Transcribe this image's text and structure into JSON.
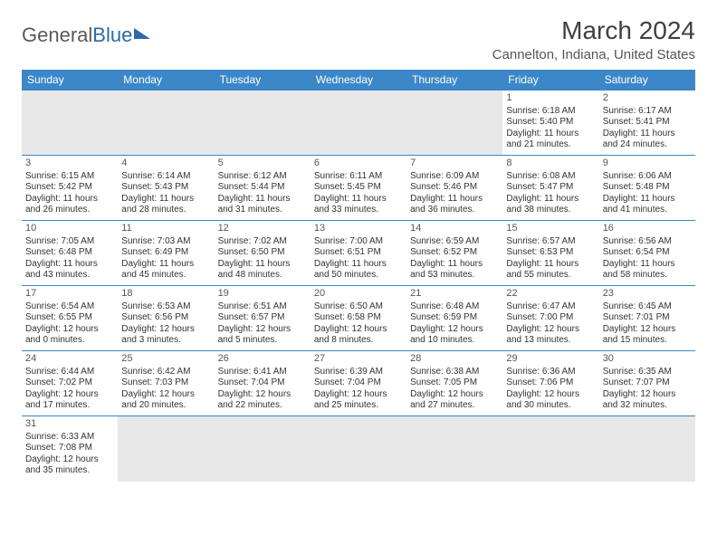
{
  "logo": {
    "general": "General",
    "blue": "Blue"
  },
  "title": "March 2024",
  "location": "Cannelton, Indiana, United States",
  "weekdays": [
    "Sunday",
    "Monday",
    "Tuesday",
    "Wednesday",
    "Thursday",
    "Friday",
    "Saturday"
  ],
  "colors": {
    "header_bg": "#3b87c8",
    "header_text": "#ffffff",
    "border": "#3b87c8",
    "text": "#333333",
    "empty_bg": "#e8e8e8"
  },
  "weeks": [
    [
      null,
      null,
      null,
      null,
      null,
      {
        "n": "1",
        "sr": "Sunrise: 6:18 AM",
        "ss": "Sunset: 5:40 PM",
        "d1": "Daylight: 11 hours",
        "d2": "and 21 minutes."
      },
      {
        "n": "2",
        "sr": "Sunrise: 6:17 AM",
        "ss": "Sunset: 5:41 PM",
        "d1": "Daylight: 11 hours",
        "d2": "and 24 minutes."
      }
    ],
    [
      {
        "n": "3",
        "sr": "Sunrise: 6:15 AM",
        "ss": "Sunset: 5:42 PM",
        "d1": "Daylight: 11 hours",
        "d2": "and 26 minutes."
      },
      {
        "n": "4",
        "sr": "Sunrise: 6:14 AM",
        "ss": "Sunset: 5:43 PM",
        "d1": "Daylight: 11 hours",
        "d2": "and 28 minutes."
      },
      {
        "n": "5",
        "sr": "Sunrise: 6:12 AM",
        "ss": "Sunset: 5:44 PM",
        "d1": "Daylight: 11 hours",
        "d2": "and 31 minutes."
      },
      {
        "n": "6",
        "sr": "Sunrise: 6:11 AM",
        "ss": "Sunset: 5:45 PM",
        "d1": "Daylight: 11 hours",
        "d2": "and 33 minutes."
      },
      {
        "n": "7",
        "sr": "Sunrise: 6:09 AM",
        "ss": "Sunset: 5:46 PM",
        "d1": "Daylight: 11 hours",
        "d2": "and 36 minutes."
      },
      {
        "n": "8",
        "sr": "Sunrise: 6:08 AM",
        "ss": "Sunset: 5:47 PM",
        "d1": "Daylight: 11 hours",
        "d2": "and 38 minutes."
      },
      {
        "n": "9",
        "sr": "Sunrise: 6:06 AM",
        "ss": "Sunset: 5:48 PM",
        "d1": "Daylight: 11 hours",
        "d2": "and 41 minutes."
      }
    ],
    [
      {
        "n": "10",
        "sr": "Sunrise: 7:05 AM",
        "ss": "Sunset: 6:48 PM",
        "d1": "Daylight: 11 hours",
        "d2": "and 43 minutes."
      },
      {
        "n": "11",
        "sr": "Sunrise: 7:03 AM",
        "ss": "Sunset: 6:49 PM",
        "d1": "Daylight: 11 hours",
        "d2": "and 45 minutes."
      },
      {
        "n": "12",
        "sr": "Sunrise: 7:02 AM",
        "ss": "Sunset: 6:50 PM",
        "d1": "Daylight: 11 hours",
        "d2": "and 48 minutes."
      },
      {
        "n": "13",
        "sr": "Sunrise: 7:00 AM",
        "ss": "Sunset: 6:51 PM",
        "d1": "Daylight: 11 hours",
        "d2": "and 50 minutes."
      },
      {
        "n": "14",
        "sr": "Sunrise: 6:59 AM",
        "ss": "Sunset: 6:52 PM",
        "d1": "Daylight: 11 hours",
        "d2": "and 53 minutes."
      },
      {
        "n": "15",
        "sr": "Sunrise: 6:57 AM",
        "ss": "Sunset: 6:53 PM",
        "d1": "Daylight: 11 hours",
        "d2": "and 55 minutes."
      },
      {
        "n": "16",
        "sr": "Sunrise: 6:56 AM",
        "ss": "Sunset: 6:54 PM",
        "d1": "Daylight: 11 hours",
        "d2": "and 58 minutes."
      }
    ],
    [
      {
        "n": "17",
        "sr": "Sunrise: 6:54 AM",
        "ss": "Sunset: 6:55 PM",
        "d1": "Daylight: 12 hours",
        "d2": "and 0 minutes."
      },
      {
        "n": "18",
        "sr": "Sunrise: 6:53 AM",
        "ss": "Sunset: 6:56 PM",
        "d1": "Daylight: 12 hours",
        "d2": "and 3 minutes."
      },
      {
        "n": "19",
        "sr": "Sunrise: 6:51 AM",
        "ss": "Sunset: 6:57 PM",
        "d1": "Daylight: 12 hours",
        "d2": "and 5 minutes."
      },
      {
        "n": "20",
        "sr": "Sunrise: 6:50 AM",
        "ss": "Sunset: 6:58 PM",
        "d1": "Daylight: 12 hours",
        "d2": "and 8 minutes."
      },
      {
        "n": "21",
        "sr": "Sunrise: 6:48 AM",
        "ss": "Sunset: 6:59 PM",
        "d1": "Daylight: 12 hours",
        "d2": "and 10 minutes."
      },
      {
        "n": "22",
        "sr": "Sunrise: 6:47 AM",
        "ss": "Sunset: 7:00 PM",
        "d1": "Daylight: 12 hours",
        "d2": "and 13 minutes."
      },
      {
        "n": "23",
        "sr": "Sunrise: 6:45 AM",
        "ss": "Sunset: 7:01 PM",
        "d1": "Daylight: 12 hours",
        "d2": "and 15 minutes."
      }
    ],
    [
      {
        "n": "24",
        "sr": "Sunrise: 6:44 AM",
        "ss": "Sunset: 7:02 PM",
        "d1": "Daylight: 12 hours",
        "d2": "and 17 minutes."
      },
      {
        "n": "25",
        "sr": "Sunrise: 6:42 AM",
        "ss": "Sunset: 7:03 PM",
        "d1": "Daylight: 12 hours",
        "d2": "and 20 minutes."
      },
      {
        "n": "26",
        "sr": "Sunrise: 6:41 AM",
        "ss": "Sunset: 7:04 PM",
        "d1": "Daylight: 12 hours",
        "d2": "and 22 minutes."
      },
      {
        "n": "27",
        "sr": "Sunrise: 6:39 AM",
        "ss": "Sunset: 7:04 PM",
        "d1": "Daylight: 12 hours",
        "d2": "and 25 minutes."
      },
      {
        "n": "28",
        "sr": "Sunrise: 6:38 AM",
        "ss": "Sunset: 7:05 PM",
        "d1": "Daylight: 12 hours",
        "d2": "and 27 minutes."
      },
      {
        "n": "29",
        "sr": "Sunrise: 6:36 AM",
        "ss": "Sunset: 7:06 PM",
        "d1": "Daylight: 12 hours",
        "d2": "and 30 minutes."
      },
      {
        "n": "30",
        "sr": "Sunrise: 6:35 AM",
        "ss": "Sunset: 7:07 PM",
        "d1": "Daylight: 12 hours",
        "d2": "and 32 minutes."
      }
    ],
    [
      {
        "n": "31",
        "sr": "Sunrise: 6:33 AM",
        "ss": "Sunset: 7:08 PM",
        "d1": "Daylight: 12 hours",
        "d2": "and 35 minutes."
      },
      null,
      null,
      null,
      null,
      null,
      null
    ]
  ]
}
